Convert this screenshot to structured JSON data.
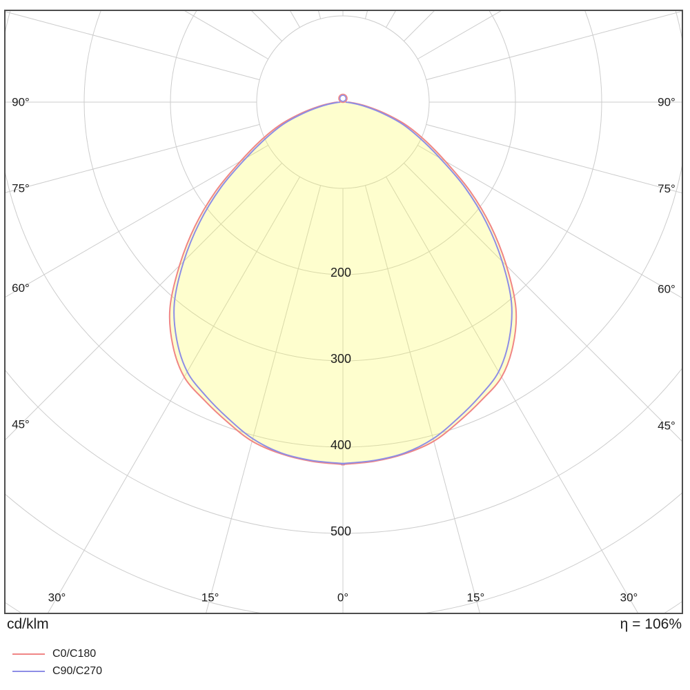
{
  "chart_data": {
    "type": "polar",
    "subtype": "luminous-intensity-distribution",
    "title": "",
    "units_label": "cd/klm",
    "efficiency_label": "η = 106%",
    "polar_axis": {
      "ring_step_value": 100,
      "ring_values": [
        100,
        200,
        300,
        400,
        500,
        600,
        700
      ],
      "ring_labels": [
        {
          "value": 200,
          "text": "200"
        },
        {
          "value": 300,
          "text": "300"
        },
        {
          "value": 400,
          "text": "400"
        },
        {
          "value": 500,
          "text": "500"
        }
      ],
      "radial_grid_step_deg": 15,
      "angle_labels": [
        {
          "deg": 0,
          "text": "0°"
        },
        {
          "deg": 15,
          "text": "15°"
        },
        {
          "deg": 30,
          "text": "30°"
        },
        {
          "deg": 45,
          "text": "45°"
        },
        {
          "deg": 60,
          "text": "60°"
        },
        {
          "deg": 75,
          "text": "75°"
        },
        {
          "deg": 90,
          "text": "90°"
        }
      ]
    },
    "series": [
      {
        "name": "C0/C180",
        "color": "#f08585",
        "angles_deg": [
          0,
          5,
          10,
          15,
          20,
          25,
          30,
          35,
          40,
          45,
          50,
          55,
          60,
          65,
          70,
          75,
          80,
          85,
          90
        ],
        "values_cd_per_klm": [
          420,
          418,
          414,
          407,
          394,
          381,
          368,
          344,
          312,
          268,
          224,
          180,
          137,
          105,
          78,
          50,
          28,
          13,
          6
        ]
      },
      {
        "name": "C90/C270",
        "color": "#8d8de6",
        "angles_deg": [
          0,
          5,
          10,
          15,
          20,
          25,
          30,
          35,
          40,
          45,
          50,
          55,
          60,
          65,
          70,
          75,
          80,
          85,
          90
        ],
        "values_cd_per_klm": [
          419,
          417,
          413,
          404,
          390,
          376,
          361,
          336,
          304,
          261,
          217,
          173,
          130,
          98,
          72,
          44,
          23,
          9,
          3
        ]
      }
    ],
    "fill": {
      "color": "#fafa50",
      "opacity": 0.28
    },
    "colors": {
      "grid": "#cccccc",
      "frame": "#4d4d4d",
      "text": "#1c1c1c",
      "background": "#ffffff"
    }
  }
}
